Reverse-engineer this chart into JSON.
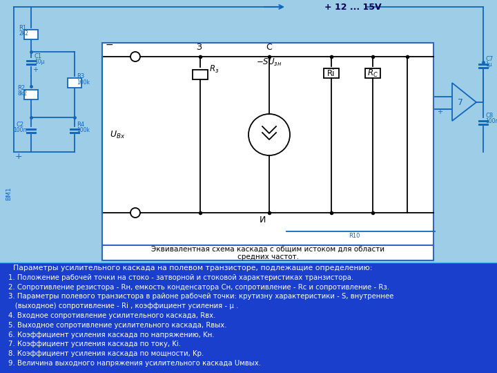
{
  "bg_color_top": "#9ecde8",
  "bg_color_bottom": "#1a3fcc",
  "title_text": "+ 12 ... 15V",
  "caption_text": "Эквивалентная схема каскада с общим истоком для области\nсредних частот.",
  "bottom_lines": [
    "  Параметры усилительного каскада на полевом транзисторе, подлежащие определению:",
    "1. Положение рабочей точки на стоко - затворной и стоковой характеристиках транзистора.",
    "2. Сопротивление резистора - Rн, емкость конденсатора Cн, сопротивление - Rc и сопротивление - Rз.",
    "3. Параметры полевого транзистора в районе рабочей точки: крутизну характеристики - S, внутреннее",
    "   (выходное) сопротивление - Ri , коэффициент усиления - μ .",
    "4. Входное сопротивление усилительного каскада, Rвх.",
    "5. Выходное сопротивление усилительного каскада, Rвых.",
    "6. Коэффициент усиления каскада по напряжению, Kн.",
    "7. Коэффициент усиления каскада по току, Ki.",
    "8. Коэффициент усиления каскада по мощности, Kp.",
    "9. Величина выходного напряжения усилительного каскада Uмвых."
  ],
  "lcolor": "#1166bb",
  "circ_color": "#000000"
}
